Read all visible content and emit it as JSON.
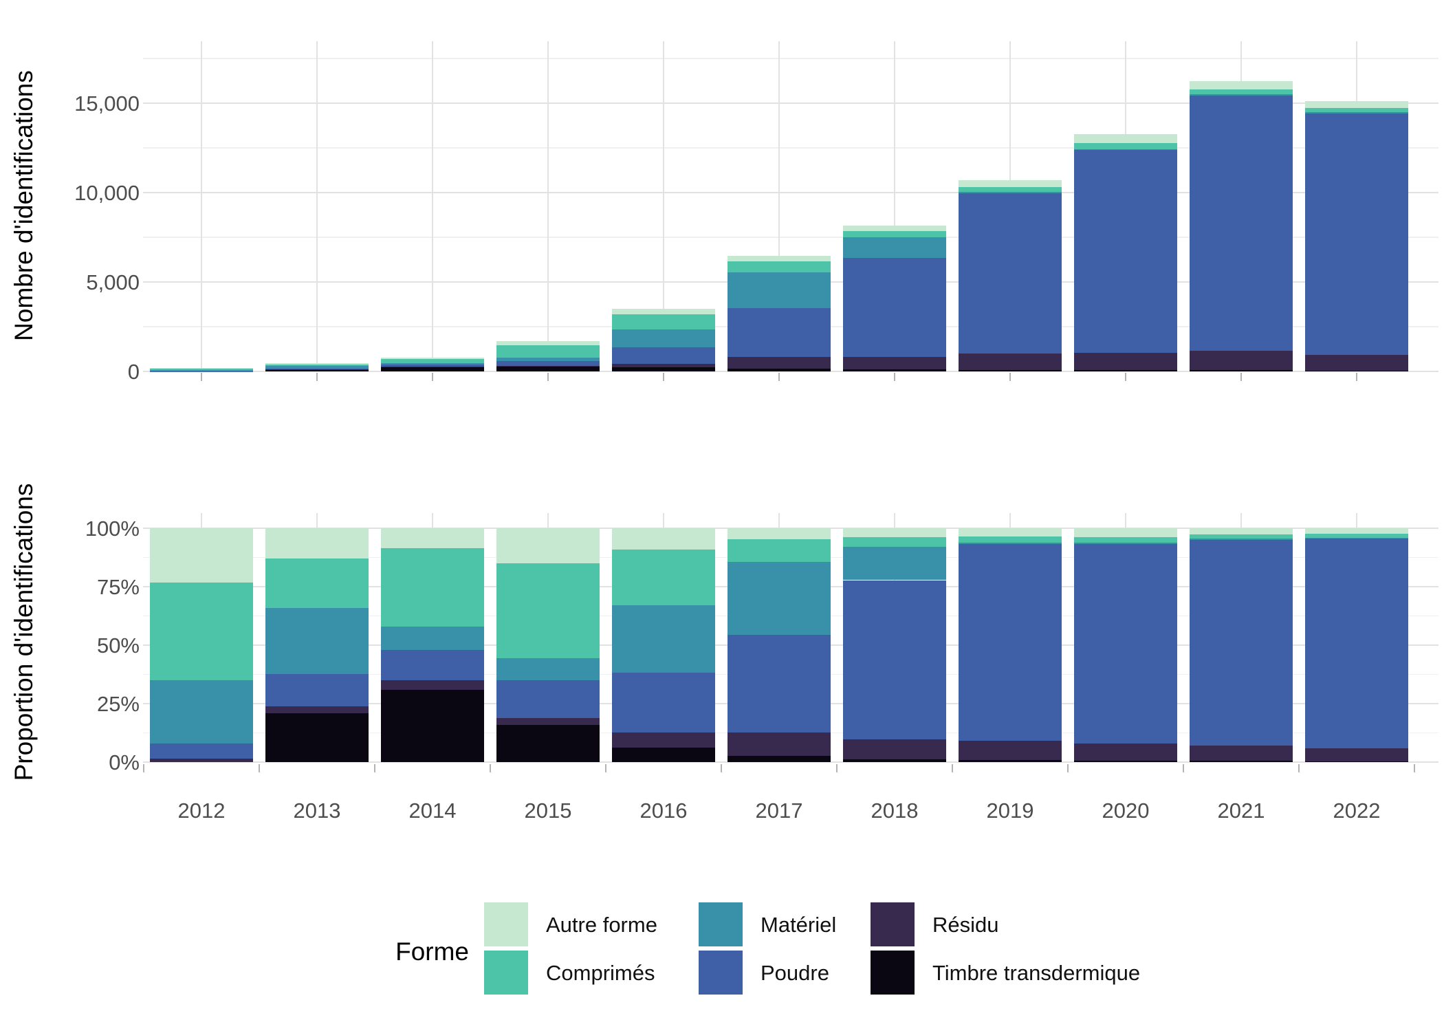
{
  "figure": {
    "background": "#ffffff",
    "grid_major_color": "#e2e2e2",
    "grid_minor_color": "#f0f0f0",
    "axis_text_color": "#4d4d4d",
    "tick_color": "#b3b3b3"
  },
  "years": [
    "2012",
    "2013",
    "2014",
    "2015",
    "2016",
    "2017",
    "2018",
    "2019",
    "2020",
    "2021",
    "2022"
  ],
  "forms": [
    {
      "name": "Timbre transdermique",
      "color": "#0b0712"
    },
    {
      "name": "Résidu",
      "color": "#372a4e"
    },
    {
      "name": "Poudre",
      "color": "#3f5fa6"
    },
    {
      "name": "Matériel",
      "color": "#3891a9"
    },
    {
      "name": "Comprimés",
      "color": "#4dc3a8"
    },
    {
      "name": "Autre forme",
      "color": "#c6e8d0"
    }
  ],
  "legend": {
    "title": "Forme",
    "columns": [
      [
        "Autre forme",
        "Comprimés"
      ],
      [
        "Matériel",
        "Poudre"
      ],
      [
        "Résidu",
        "Timbre transdermique"
      ]
    ]
  },
  "chart_data": [
    {
      "type": "bar",
      "stacked": true,
      "ylabel": "Nombre d'identifications",
      "categories": [
        "2012",
        "2013",
        "2014",
        "2015",
        "2016",
        "2017",
        "2018",
        "2019",
        "2020",
        "2021",
        "2022"
      ],
      "series": [
        {
          "name": "Timbre transdermique",
          "values": [
            0,
            94,
            237,
            272,
            220,
            167,
            98,
            96,
            93,
            81,
            45
          ]
        },
        {
          "name": "Résidu",
          "values": [
            3,
            12,
            32,
            48,
            220,
            647,
            692,
            888,
            955,
            1087,
            861
          ]
        },
        {
          "name": "Poudre",
          "values": [
            13,
            63,
            100,
            275,
            893,
            2711,
            5543,
            8988,
            11333,
            14257,
            13530
          ]
        },
        {
          "name": "Matériel",
          "values": [
            54,
            127,
            77,
            162,
            1015,
            2006,
            1164,
            54,
            53,
            65,
            60
          ]
        },
        {
          "name": "Comprimés",
          "values": [
            83,
            96,
            259,
            688,
            830,
            628,
            342,
            299,
            345,
            292,
            242
          ]
        },
        {
          "name": "Autre forme",
          "values": [
            47,
            58,
            65,
            255,
            322,
            311,
            301,
            375,
            491,
            438,
            362
          ]
        }
      ],
      "totals": [
        200,
        450,
        770,
        1700,
        3500,
        6470,
        8140,
        10700,
        13270,
        16220,
        15100
      ],
      "yticks": [
        0,
        5000,
        10000,
        15000
      ],
      "ytick_labels": [
        "0",
        "5,000",
        "10,000",
        "15,000"
      ],
      "minor_yticks": [
        2500,
        7500,
        12500,
        17500
      ],
      "ylim": [
        0,
        18460
      ],
      "grid": true,
      "legend_position": "bottom"
    },
    {
      "type": "bar",
      "stacked": true,
      "unit": "percent",
      "ylabel": "Proportion d'identifications",
      "categories": [
        "2012",
        "2013",
        "2014",
        "2015",
        "2016",
        "2017",
        "2018",
        "2019",
        "2020",
        "2021",
        "2022"
      ],
      "series": [
        {
          "name": "Timbre transdermique",
          "values": [
            0,
            21.0,
            30.8,
            16.0,
            6.3,
            2.6,
            1.2,
            0.9,
            0.7,
            0.5,
            0.3
          ]
        },
        {
          "name": "Résidu",
          "values": [
            1.6,
            2.7,
            4.1,
            2.8,
            6.3,
            10.0,
            8.5,
            8.3,
            7.2,
            6.7,
            5.7
          ]
        },
        {
          "name": "Poudre",
          "values": [
            6.4,
            13.9,
            13.0,
            16.2,
            25.5,
            41.9,
            68.1,
            84.0,
            85.4,
            87.9,
            89.6
          ]
        },
        {
          "name": "Matériel",
          "values": [
            27.0,
            28.2,
            10.0,
            9.5,
            29.0,
            31.0,
            14.3,
            0.5,
            0.4,
            0.4,
            0.4
          ]
        },
        {
          "name": "Comprimés",
          "values": [
            41.7,
            21.3,
            33.6,
            40.5,
            23.7,
            9.7,
            4.2,
            2.8,
            2.6,
            1.8,
            1.6
          ]
        },
        {
          "name": "Autre forme",
          "values": [
            23.3,
            12.9,
            8.5,
            15.0,
            9.2,
            4.8,
            3.7,
            3.5,
            3.7,
            2.7,
            2.4
          ]
        }
      ],
      "yticks": [
        0,
        25,
        50,
        75,
        100
      ],
      "ytick_labels": [
        "0%",
        "25%",
        "50%",
        "75%",
        "100%"
      ],
      "minor_yticks": [
        12.5,
        37.5,
        62.5,
        87.5
      ],
      "ylim": [
        0,
        100
      ],
      "grid": true
    }
  ]
}
